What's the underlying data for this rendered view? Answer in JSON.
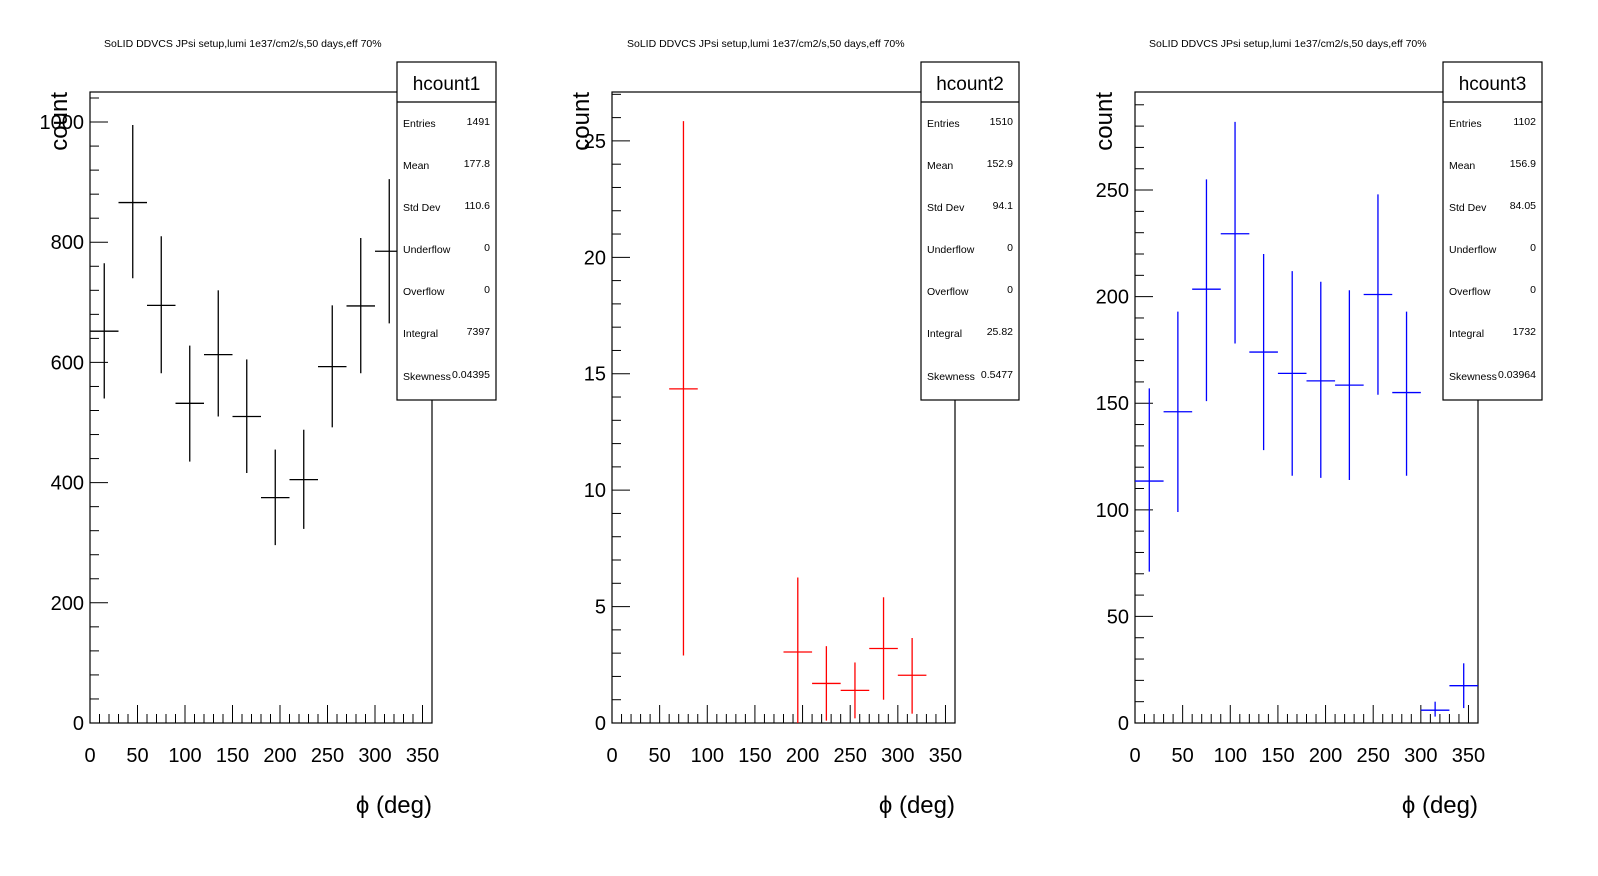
{
  "chart_data": [
    {
      "type": "histogram",
      "title": "SoLID DDVCS JPsi setup,lumi 1e37/cm2/s,50 days,eff 70%",
      "xlabel": "ϕ (deg)",
      "ylabel": "count",
      "xlim": [
        0,
        360
      ],
      "ylim": [
        0,
        1050
      ],
      "xticks": [
        0,
        50,
        100,
        150,
        200,
        250,
        300,
        350
      ],
      "yticks": [
        0,
        200,
        400,
        600,
        800,
        1000
      ],
      "color": "#000000",
      "points": [
        {
          "x": 15,
          "y": 652,
          "lo": 540,
          "hi": 765
        },
        {
          "x": 45,
          "y": 866,
          "lo": 740,
          "hi": 995
        },
        {
          "x": 75,
          "y": 695,
          "lo": 582,
          "hi": 810
        },
        {
          "x": 105,
          "y": 532,
          "lo": 435,
          "hi": 628
        },
        {
          "x": 135,
          "y": 613,
          "lo": 510,
          "hi": 720
        },
        {
          "x": 165,
          "y": 510,
          "lo": 416,
          "hi": 605
        },
        {
          "x": 195,
          "y": 375,
          "lo": 296,
          "hi": 455
        },
        {
          "x": 225,
          "y": 405,
          "lo": 323,
          "hi": 488
        },
        {
          "x": 255,
          "y": 593,
          "lo": 492,
          "hi": 695
        },
        {
          "x": 285,
          "y": 694,
          "lo": 582,
          "hi": 807
        },
        {
          "x": 315,
          "y": 785,
          "lo": 665,
          "hi": 905
        }
      ],
      "stats": {
        "name": "hcount1",
        "rows": [
          {
            "label": "Entries",
            "value": "1491"
          },
          {
            "label": "Mean",
            "value": "177.8"
          },
          {
            "label": "Std Dev",
            "value": "110.6"
          },
          {
            "label": "Underflow",
            "value": "0"
          },
          {
            "label": "Overflow",
            "value": "0"
          },
          {
            "label": "Integral",
            "value": "7397"
          },
          {
            "label": "Skewness",
            "value": "0.04395"
          }
        ]
      }
    },
    {
      "type": "histogram",
      "title": "SoLID DDVCS JPsi setup,lumi 1e37/cm2/s,50 days,eff 70%",
      "xlabel": "ϕ (deg)",
      "ylabel": "count",
      "xlim": [
        0,
        360
      ],
      "ylim": [
        0,
        27.1
      ],
      "xticks": [
        0,
        50,
        100,
        150,
        200,
        250,
        300,
        350
      ],
      "yticks": [
        0,
        5,
        10,
        15,
        20,
        25
      ],
      "color": "#ff0000",
      "points": [
        {
          "x": 75,
          "y": 14.35,
          "lo": 2.9,
          "hi": 25.85
        },
        {
          "x": 195,
          "y": 3.05,
          "lo": 0,
          "hi": 6.25
        },
        {
          "x": 225,
          "y": 1.7,
          "lo": 0.1,
          "hi": 3.3
        },
        {
          "x": 255,
          "y": 1.4,
          "lo": 0.2,
          "hi": 2.6
        },
        {
          "x": 285,
          "y": 3.2,
          "lo": 1.0,
          "hi": 5.4
        },
        {
          "x": 315,
          "y": 2.05,
          "lo": 0.4,
          "hi": 3.65
        }
      ],
      "stats": {
        "name": "hcount2",
        "rows": [
          {
            "label": "Entries",
            "value": "1510"
          },
          {
            "label": "Mean",
            "value": "152.9"
          },
          {
            "label": "Std Dev",
            "value": "94.1"
          },
          {
            "label": "Underflow",
            "value": "0"
          },
          {
            "label": "Overflow",
            "value": "0"
          },
          {
            "label": "Integral",
            "value": "25.82"
          },
          {
            "label": "Skewness",
            "value": "0.5477"
          }
        ]
      }
    },
    {
      "type": "histogram",
      "title": "SoLID DDVCS JPsi setup,lumi 1e37/cm2/s,50 days,eff 70%",
      "xlabel": "ϕ (deg)",
      "ylabel": "count",
      "xlim": [
        0,
        360
      ],
      "ylim": [
        0,
        296
      ],
      "xticks": [
        0,
        50,
        100,
        150,
        200,
        250,
        300,
        350
      ],
      "yticks": [
        0,
        50,
        100,
        150,
        200,
        250
      ],
      "color": "#0000ff",
      "points": [
        {
          "x": 15,
          "y": 113.5,
          "lo": 71,
          "hi": 157
        },
        {
          "x": 45,
          "y": 146,
          "lo": 99,
          "hi": 193
        },
        {
          "x": 75,
          "y": 203.5,
          "lo": 151,
          "hi": 255
        },
        {
          "x": 105,
          "y": 229.5,
          "lo": 178,
          "hi": 282
        },
        {
          "x": 135,
          "y": 174,
          "lo": 128,
          "hi": 220
        },
        {
          "x": 165,
          "y": 164,
          "lo": 116,
          "hi": 212
        },
        {
          "x": 195,
          "y": 160.5,
          "lo": 115,
          "hi": 207
        },
        {
          "x": 225,
          "y": 158.5,
          "lo": 114,
          "hi": 203
        },
        {
          "x": 255,
          "y": 201,
          "lo": 154,
          "hi": 248
        },
        {
          "x": 285,
          "y": 155,
          "lo": 116,
          "hi": 193
        },
        {
          "x": 315,
          "y": 6,
          "lo": 3,
          "hi": 10
        },
        {
          "x": 345,
          "y": 17.5,
          "lo": 7,
          "hi": 28
        }
      ],
      "stats": {
        "name": "hcount3",
        "rows": [
          {
            "label": "Entries",
            "value": "1102"
          },
          {
            "label": "Mean",
            "value": "156.9"
          },
          {
            "label": "Std Dev",
            "value": "84.05"
          },
          {
            "label": "Underflow",
            "value": "0"
          },
          {
            "label": "Overflow",
            "value": "0"
          },
          {
            "label": "Integral",
            "value": "1732"
          },
          {
            "label": "Skewness",
            "value": "0.03964"
          }
        ]
      }
    }
  ]
}
